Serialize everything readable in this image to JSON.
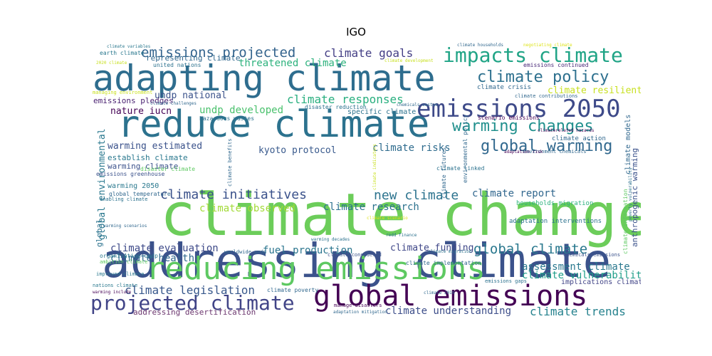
{
  "chart_data": {
    "type": "wordcloud",
    "title": "IGO",
    "words": [
      {
        "text": "climate change",
        "color": "#6ccd5a",
        "weight": 1.0
      },
      {
        "text": "addressing climate",
        "color": "#3b528b",
        "weight": 0.88
      },
      {
        "text": "reduce climate",
        "color": "#2c728e",
        "weight": 0.78
      },
      {
        "text": "adapting climate",
        "color": "#2e6d8e",
        "weight": 0.74
      },
      {
        "text": "reducing emissions",
        "color": "#5ec962",
        "weight": 0.62
      },
      {
        "text": "global emissions",
        "color": "#440154",
        "weight": 0.6
      },
      {
        "text": "emissions 2050",
        "color": "#3e4a89",
        "weight": 0.5
      },
      {
        "text": "projected climate",
        "color": "#414487",
        "weight": 0.46
      },
      {
        "text": "impacts climate",
        "color": "#20a486",
        "weight": 0.42
      },
      {
        "text": "climate policy",
        "color": "#2d708e",
        "weight": 0.36
      },
      {
        "text": "warming changes",
        "color": "#21908d",
        "weight": 0.34
      },
      {
        "text": "global warming",
        "color": "#31688e",
        "weight": 0.32
      },
      {
        "text": "global climate",
        "color": "#2a788e",
        "weight": 0.3
      },
      {
        "text": "emissions projected",
        "color": "#33638d",
        "weight": 0.29
      },
      {
        "text": "climate initiatives",
        "color": "#3b528b",
        "weight": 0.29
      },
      {
        "text": "new climate",
        "color": "#2c738e",
        "weight": 0.28
      },
      {
        "text": "climate trends",
        "color": "#26828e",
        "weight": 0.27
      },
      {
        "text": "climate goals",
        "color": "#433e85",
        "weight": 0.25
      },
      {
        "text": "climate responses",
        "color": "#29af7f",
        "weight": 0.25
      },
      {
        "text": "climate legislation",
        "color": "#38588c",
        "weight": 0.25
      },
      {
        "text": "climate understanding",
        "color": "#3d4e8a",
        "weight": 0.22
      },
      {
        "text": "climate risks",
        "color": "#2f6c8e",
        "weight": 0.22
      },
      {
        "text": "climate research",
        "color": "#2c728e",
        "weight": 0.22
      },
      {
        "text": "climate report",
        "color": "#31678e",
        "weight": 0.21
      },
      {
        "text": "assessment climate",
        "color": "#2a788e",
        "weight": 0.2
      },
      {
        "text": "climate vulnerability",
        "color": "#1f9e89",
        "weight": 0.2
      },
      {
        "text": "threatened climate",
        "color": "#2db27d",
        "weight": 0.2
      },
      {
        "text": "undp developed",
        "color": "#4ac16d",
        "weight": 0.2
      },
      {
        "text": "climate observed",
        "color": "#a2da37",
        "weight": 0.19
      },
      {
        "text": "climate evaluation",
        "color": "#3e4a89",
        "weight": 0.19
      },
      {
        "text": "climate health",
        "color": "#31688e",
        "weight": 0.18
      },
      {
        "text": "fuel production",
        "color": "#2b758e",
        "weight": 0.18
      },
      {
        "text": "climate funding",
        "color": "#3f4788",
        "weight": 0.16
      },
      {
        "text": "climate resilient",
        "color": "#c8e020",
        "weight": 0.16
      },
      {
        "text": "undp national",
        "color": "#3b528b",
        "weight": 0.16
      },
      {
        "text": "nature iucn",
        "color": "#440154",
        "weight": 0.15
      },
      {
        "text": "kyoto protocol",
        "color": "#38598c",
        "weight": 0.15
      },
      {
        "text": "warming estimated",
        "color": "#3b528b",
        "weight": 0.14
      },
      {
        "text": "global environmental",
        "color": "#2a788e",
        "weight": 0.14
      },
      {
        "text": "emissions pledges",
        "color": "#481f70",
        "weight": 0.12
      },
      {
        "text": "addressing desertification",
        "color": "#6c376f",
        "weight": 0.12
      },
      {
        "text": "anthropogenic warming",
        "color": "#3b528b",
        "weight": 0.11
      },
      {
        "text": "global",
        "color": "#2c728e",
        "weight": 0.11
      },
      {
        "text": "representing climate",
        "color": "#31688e",
        "weight": 0.11
      },
      {
        "text": "establish climate",
        "color": "#2a788e",
        "weight": 0.1
      },
      {
        "text": "warming climate",
        "color": "#3b528b",
        "weight": 0.1
      },
      {
        "text": "implications climate",
        "color": "#414487",
        "weight": 0.1
      },
      {
        "text": "specific climate",
        "color": "#2c728e",
        "weight": 0.09
      },
      {
        "text": "climate models",
        "color": "#31688e",
        "weight": 0.09
      },
      {
        "text": "warming 2050",
        "color": "#2a788e",
        "weight": 0.09
      },
      {
        "text": "climate action",
        "color": "#31688e",
        "weight": 0.08
      },
      {
        "text": "households migration",
        "color": "#2db27d",
        "weight": 0.08
      },
      {
        "text": "adaptation interventions",
        "color": "#2c728e",
        "weight": 0.08
      },
      {
        "text": "climate crisis",
        "color": "#31688e",
        "weight": 0.08
      },
      {
        "text": "united nations",
        "color": "#2c728e",
        "weight": 0.08
      },
      {
        "text": "earth climate",
        "color": "#2a788e",
        "weight": 0.08
      },
      {
        "text": "disaster reduction",
        "color": "#2c728e",
        "weight": 0.08
      },
      {
        "text": "emissions continued",
        "color": "#482878",
        "weight": 0.07
      },
      {
        "text": "emissions greenhouse",
        "color": "#3b528b",
        "weight": 0.07
      },
      {
        "text": "global temperature",
        "color": "#31688e",
        "weight": 0.07
      },
      {
        "text": "disaster climate",
        "color": "#5ec962",
        "weight": 0.07
      },
      {
        "text": "climate information",
        "color": "#5ec962",
        "weight": 0.07
      },
      {
        "text": "environmental policy",
        "color": "#31688e",
        "weight": 0.07
      },
      {
        "text": "scenario emissions",
        "color": "#440154",
        "weight": 0.07
      },
      {
        "text": "climate linked",
        "color": "#2c728e",
        "weight": 0.07
      },
      {
        "text": "climate futures",
        "color": "#31688e",
        "weight": 0.07
      },
      {
        "text": "climate implementation",
        "color": "#31688e",
        "weight": 0.07
      },
      {
        "text": "organization undp",
        "color": "#2a788e",
        "weight": 0.07
      },
      {
        "text": "climate poverty",
        "color": "#31688e",
        "weight": 0.07
      },
      {
        "text": "hazardous wastes",
        "color": "#2c728e",
        "weight": 0.07
      },
      {
        "text": "climate contributions",
        "color": "#31688e",
        "weight": 0.06
      },
      {
        "text": "climate considered",
        "color": "#3b528b",
        "weight": 0.06
      },
      {
        "text": "environment chemicals",
        "color": "#31688e",
        "weight": 0.06
      },
      {
        "text": "ambition climate",
        "color": "#5ec962",
        "weight": 0.06
      },
      {
        "text": "worldwide undp",
        "color": "#31688e",
        "weight": 0.06
      },
      {
        "text": "enabling climate",
        "color": "#2c728e",
        "weight": 0.06
      },
      {
        "text": "improved climate",
        "color": "#2a788e",
        "weight": 0.06
      },
      {
        "text": "managing environment",
        "color": "#c8e020",
        "weight": 0.06
      },
      {
        "text": "chemicals emissions",
        "color": "#3b528b",
        "weight": 0.06
      },
      {
        "text": "emissions gaps",
        "color": "#2c728e",
        "weight": 0.06
      },
      {
        "text": "climate benefits",
        "color": "#31688e",
        "weight": 0.06
      },
      {
        "text": "manage disasters",
        "color": "#440154",
        "weight": 0.06
      },
      {
        "text": "nations climate",
        "color": "#2a788e",
        "weight": 0.06
      },
      {
        "text": "adaptation risk",
        "color": "#440154",
        "weight": 0.05
      },
      {
        "text": "climate migration",
        "color": "#2c728e",
        "weight": 0.05
      },
      {
        "text": "redd finance",
        "color": "#2c728e",
        "weight": 0.05
      },
      {
        "text": "warming include",
        "color": "#440154",
        "weight": 0.05
      },
      {
        "text": "climate variables",
        "color": "#2a788e",
        "weight": 0.05
      },
      {
        "text": "climate development",
        "color": "#c8e020",
        "weight": 0.05
      },
      {
        "text": "negotiating climate",
        "color": "#dde318",
        "weight": 0.05
      },
      {
        "text": "climate households",
        "color": "#31688e",
        "weight": 0.05
      },
      {
        "text": "climate challenges",
        "color": "#31688e",
        "weight": 0.05
      },
      {
        "text": "chemicals wastes",
        "color": "#31688e",
        "weight": 0.05
      },
      {
        "text": "climate indicators",
        "color": "#c8e020",
        "weight": 0.05
      },
      {
        "text": "climate scenario",
        "color": "#dde318",
        "weight": 0.05
      },
      {
        "text": "warming decades",
        "color": "#2c728e",
        "weight": 0.05
      },
      {
        "text": "adaptation mitigation",
        "color": "#31688e",
        "weight": 0.05
      },
      {
        "text": "climate 2019",
        "color": "#31688e",
        "weight": 0.05
      },
      {
        "text": "climaterelated hazards",
        "color": "#440154",
        "weight": 0.05
      },
      {
        "text": "poverty vulnerability",
        "color": "#2c728e",
        "weight": 0.05
      },
      {
        "text": "warming scenarios",
        "color": "#31688e",
        "weight": 0.05
      },
      {
        "text": "2020 climate",
        "color": "#c8e020",
        "weight": 0.05
      }
    ]
  }
}
